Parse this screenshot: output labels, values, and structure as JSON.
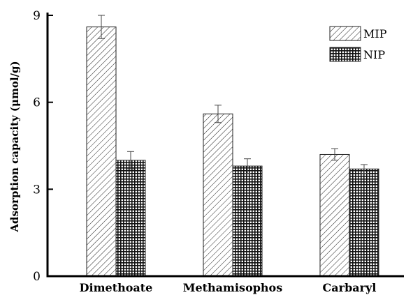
{
  "chart_data": {
    "type": "bar",
    "title": "",
    "xlabel": "",
    "ylabel": "Adsorption capacity (μmol/g)",
    "categories": [
      "Dimethoate",
      "Methamisophos",
      "Carbaryl"
    ],
    "ylim": [
      0,
      9
    ],
    "yticks": [
      0,
      3,
      6,
      9
    ],
    "grid": false,
    "legend_position": "top-right",
    "series": [
      {
        "name": "MIP",
        "values": [
          8.6,
          5.6,
          4.2
        ],
        "errors": [
          0.4,
          0.3,
          0.2
        ],
        "pattern": "diagonal-hatch"
      },
      {
        "name": "NIP",
        "values": [
          4.0,
          3.8,
          3.7
        ],
        "errors": [
          0.3,
          0.25,
          0.15
        ],
        "pattern": "cross-hatch"
      }
    ]
  }
}
